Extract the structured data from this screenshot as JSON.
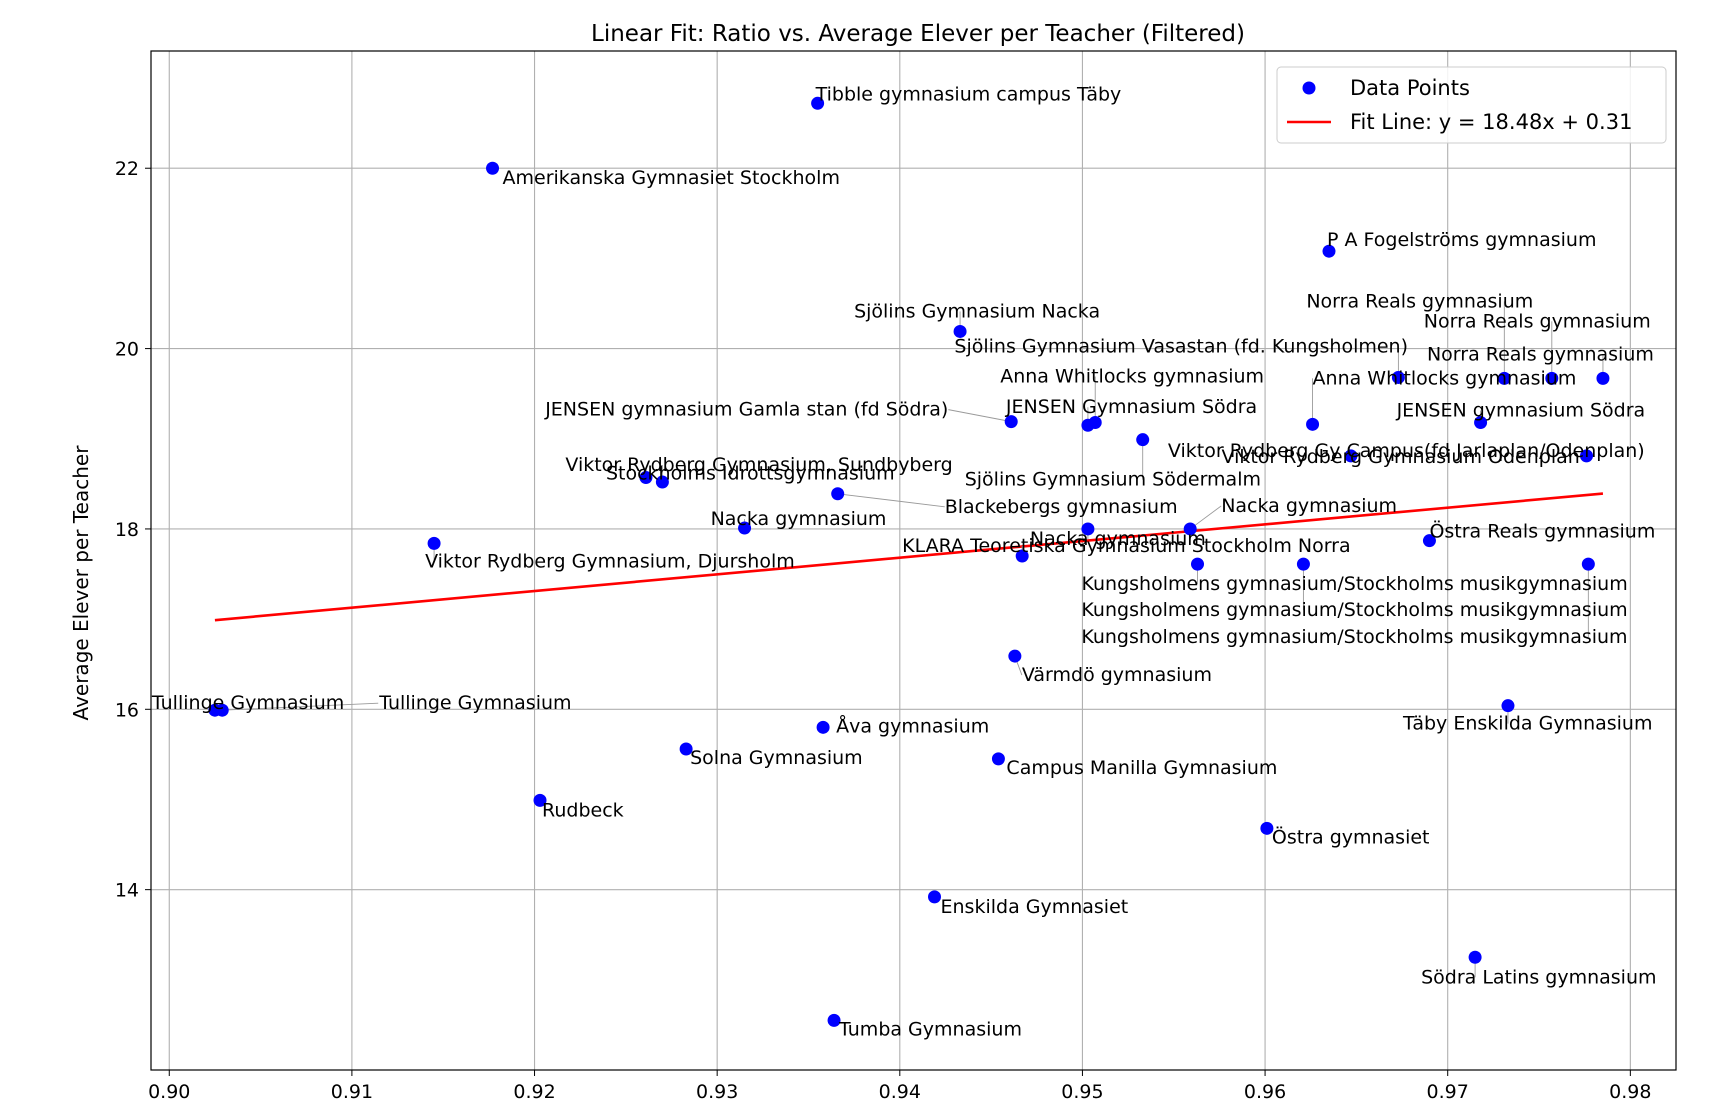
{
  "chart_data": {
    "type": "scatter",
    "title": "Linear Fit: Ratio vs. Average Elever per Teacher (Filtered)",
    "xlabel": "",
    "ylabel": "Average Elever per Teacher",
    "xlim": [
      0.899,
      0.9825
    ],
    "ylim": [
      12.0,
      23.3
    ],
    "xticks": [
      "0.90",
      "0.91",
      "0.92",
      "0.93",
      "0.94",
      "0.95",
      "0.96",
      "0.97",
      "0.98"
    ],
    "yticks": [
      "14",
      "16",
      "18",
      "20",
      "22"
    ],
    "grid": true,
    "legend": {
      "position": "top-right",
      "entries": [
        {
          "label": "Data Points",
          "color": "#0000ff",
          "kind": "marker"
        },
        {
          "label": "Fit Line: y = 18.48x + 0.31",
          "color": "#ff0000",
          "kind": "line"
        }
      ]
    },
    "fit_line": {
      "slope": 18.48,
      "intercept": 0.31,
      "x_range": [
        0.9025,
        0.9785
      ],
      "color": "#ff0000"
    },
    "marker_color": "#0000ff",
    "points": [
      {
        "x": 0.9355,
        "y": 22.72,
        "label": "Tibble gymnasium campus Täby"
      },
      {
        "x": 0.9177,
        "y": 22.0,
        "label": "Amerikanska Gymnasiet Stockholm"
      },
      {
        "x": 0.9635,
        "y": 21.08,
        "label": "P A Fogelströms gymnasium"
      },
      {
        "x": 0.9433,
        "y": 20.19,
        "label": "Sjölins Gymnasium Nacka"
      },
      {
        "x": 0.9673,
        "y": 19.68,
        "label": "Sjölins Gymnasium Vasastan (fd. Kungsholmen)"
      },
      {
        "x": 0.9731,
        "y": 19.67,
        "label": "Norra Reals gymnasium"
      },
      {
        "x": 0.9757,
        "y": 19.67,
        "label": "Norra Reals gymnasium"
      },
      {
        "x": 0.9785,
        "y": 19.67,
        "label": "Norra Reals gymnasium"
      },
      {
        "x": 0.9507,
        "y": 19.18,
        "label": "Anna Whitlocks gymnasium"
      },
      {
        "x": 0.9626,
        "y": 19.16,
        "label": "Anna Whitlocks gymnasium"
      },
      {
        "x": 0.9461,
        "y": 19.19,
        "label": "JENSEN gymnasium Gamla stan (fd Södra)"
      },
      {
        "x": 0.9503,
        "y": 19.15,
        "label": "JENSEN Gymnasium Södra"
      },
      {
        "x": 0.9718,
        "y": 19.18,
        "label": "JENSEN gymnasium Södra"
      },
      {
        "x": 0.9533,
        "y": 18.99,
        "label": "Sjölins Gymnasium Södermalm"
      },
      {
        "x": 0.9647,
        "y": 18.81,
        "label": "Viktor Rydberg Gy Campus(fd Jarlaplan/Odenplan)"
      },
      {
        "x": 0.9776,
        "y": 18.81,
        "label": "Viktor Rydberg Gymnasium Odenplan"
      },
      {
        "x": 0.927,
        "y": 18.52,
        "label": "Viktor Rydberg Gymnasium, Sundbyberg"
      },
      {
        "x": 0.9261,
        "y": 18.57,
        "label": "Stockholms Idrottsgymnasium"
      },
      {
        "x": 0.9366,
        "y": 18.39,
        "label": "Blackebergs gymnasium"
      },
      {
        "x": 0.9315,
        "y": 18.01,
        "label": "Nacka gymnasium"
      },
      {
        "x": 0.9503,
        "y": 18.0,
        "label": "Nacka gymnasium"
      },
      {
        "x": 0.9559,
        "y": 18.0,
        "label": "Nacka gymnasium"
      },
      {
        "x": 0.969,
        "y": 17.87,
        "label": "Östra Reals gymnasium"
      },
      {
        "x": 0.9145,
        "y": 17.84,
        "label": "Viktor Rydberg Gymnasium, Djursholm"
      },
      {
        "x": 0.9467,
        "y": 17.7,
        "label": "KLARA Teoretiska Gymnasium Stockholm Norra"
      },
      {
        "x": 0.9563,
        "y": 17.61,
        "label": "Kungsholmens gymnasium/Stockholms musikgymnasium"
      },
      {
        "x": 0.9621,
        "y": 17.61,
        "label": "Kungsholmens gymnasium/Stockholms musikgymnasium"
      },
      {
        "x": 0.9777,
        "y": 17.61,
        "label": "Kungsholmens gymnasium/Stockholms musikgymnasium"
      },
      {
        "x": 0.9463,
        "y": 16.59,
        "label": "Värmdö gymnasium"
      },
      {
        "x": 0.9733,
        "y": 16.04,
        "label": "Täby Enskilda Gymnasium"
      },
      {
        "x": 0.9025,
        "y": 15.99,
        "label": "Tullinge Gymnasium"
      },
      {
        "x": 0.9029,
        "y": 15.99,
        "label": "Tullinge Gymnasium"
      },
      {
        "x": 0.9358,
        "y": 15.8,
        "label": "Åva gymnasium"
      },
      {
        "x": 0.9283,
        "y": 15.56,
        "label": "Solna Gymnasium"
      },
      {
        "x": 0.9454,
        "y": 15.45,
        "label": "Campus Manilla Gymnasium"
      },
      {
        "x": 0.9203,
        "y": 14.99,
        "label": "Rudbeck"
      },
      {
        "x": 0.9601,
        "y": 14.68,
        "label": "Östra gymnasiet"
      },
      {
        "x": 0.9419,
        "y": 13.92,
        "label": "Enskilda Gymnasiet"
      },
      {
        "x": 0.9715,
        "y": 13.25,
        "label": "Södra Latins gymnasium"
      },
      {
        "x": 0.9364,
        "y": 12.55,
        "label": "Tumba Gymnasium"
      }
    ]
  }
}
